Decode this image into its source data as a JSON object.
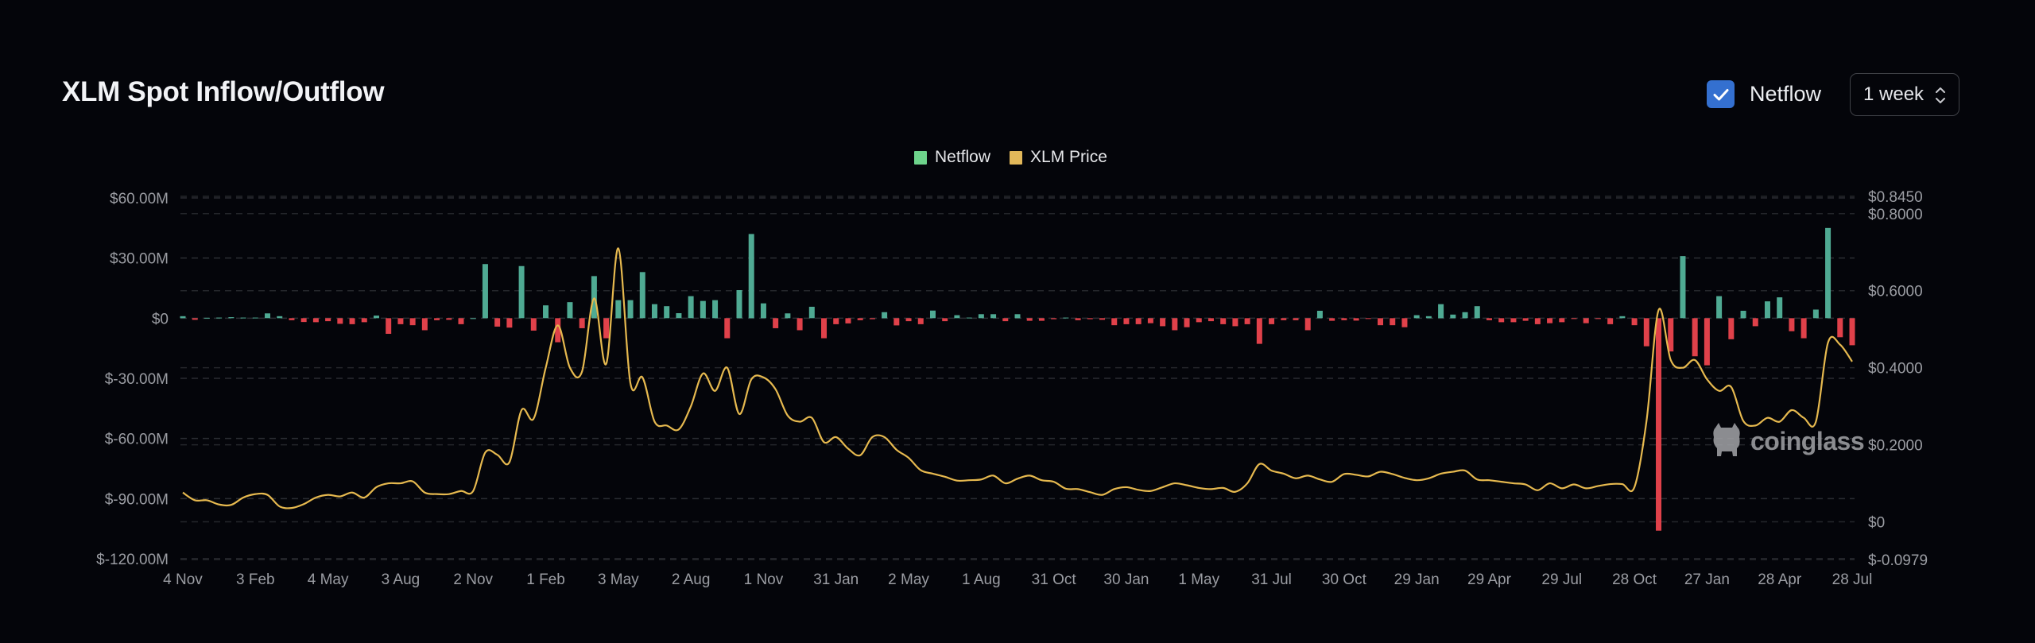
{
  "header": {
    "title": "XLM Spot Inflow/Outflow",
    "netflow_toggle": {
      "label": "Netflow",
      "checked": true,
      "icon": "checkmark-icon"
    },
    "period_select": {
      "value": "1 week",
      "icon": "chevron-up-down-icon"
    }
  },
  "watermark": {
    "text": "coinglass"
  },
  "colors": {
    "background": "#04050a",
    "inflow": "#4faa93",
    "outflow": "#e0414a",
    "price_line": "#e6b94f",
    "legend_netflow": "#6dd38b",
    "legend_price": "#e2b85a",
    "checkbox": "#3470d0"
  },
  "chart_data": {
    "type": "bar+line",
    "legend": [
      {
        "name": "Netflow",
        "color": "#6dd38b"
      },
      {
        "name": "XLM Price",
        "color": "#e2b85a"
      }
    ],
    "legend_position": "top-center",
    "grid": true,
    "x_tick_labels": [
      "4 Nov",
      "3 Feb",
      "4 May",
      "3 Aug",
      "2 Nov",
      "1 Feb",
      "3 May",
      "2 Aug",
      "1 Nov",
      "31 Jan",
      "2 May",
      "1 Aug",
      "31 Oct",
      "30 Jan",
      "1 May",
      "31 Jul",
      "30 Oct",
      "29 Jan",
      "29 Apr",
      "29 Jul",
      "28 Oct",
      "27 Jan",
      "28 Apr",
      "28 Jul"
    ],
    "left_axis": {
      "unit": "USD millions",
      "ylim": [
        -120,
        60
      ],
      "ticks": [
        60,
        30,
        0,
        -30,
        -60,
        -90,
        -120
      ],
      "tick_labels": [
        "$60.00M",
        "$30.00M",
        "$0",
        "$-30.00M",
        "$-60.00M",
        "$-90.00M",
        "$-120.00M"
      ]
    },
    "right_axis": {
      "unit": "USD",
      "ylim": [
        -0.0979,
        0.845
      ],
      "ticks": [
        0.845,
        0.8,
        0.6,
        0.4,
        0.2,
        0,
        -0.0979
      ],
      "tick_labels": [
        "$0.8450",
        "$0.8000",
        "$0.6000",
        "$0.4000",
        "$0.2000",
        "$0",
        "$-0.0979"
      ]
    },
    "series": [
      {
        "name": "Netflow",
        "type": "bar",
        "axis": "left",
        "values": [
          1,
          -0.8,
          0.2,
          0.3,
          0.5,
          0.3,
          0.3,
          2.4,
          1,
          -1,
          -1.9,
          -2,
          -1.5,
          -2.8,
          -3,
          -2,
          1.3,
          -7.8,
          -3,
          -3.5,
          -6,
          -1,
          -0.8,
          -3,
          0,
          27,
          -4.2,
          -4.7,
          26,
          -6.2,
          6.4,
          -12,
          8,
          -5,
          21,
          -10,
          9,
          9,
          23,
          7,
          6,
          2.5,
          11,
          8.6,
          9,
          -10,
          14,
          42,
          7.4,
          -5,
          2.4,
          -6,
          5.7,
          -10,
          -3,
          -2.6,
          -1,
          -0.5,
          3,
          -3.6,
          -1.5,
          -3,
          3.8,
          -1.5,
          1.5,
          0.3,
          2,
          2,
          -1.5,
          2,
          -1.3,
          -1.3,
          -0.5,
          0.3,
          -1,
          -0.5,
          -0.8,
          -3.5,
          -3,
          -3,
          -2.5,
          -4,
          -6,
          -4.5,
          -2,
          -1.5,
          -3,
          -4,
          -3,
          -12.8,
          -3,
          -1,
          -1,
          -6,
          3.7,
          -1.3,
          -1,
          -1.2,
          -0.3,
          -3.5,
          -3.5,
          -4.5,
          1.5,
          1,
          7,
          1.8,
          3,
          6,
          -1,
          -2,
          -2,
          -1.3,
          -3,
          -2.5,
          -2,
          -0.3,
          -2.5,
          -0.3,
          -3,
          1,
          -3.5,
          -14,
          -106,
          -16.6,
          31,
          -19,
          -23.5,
          11,
          -10.5,
          3.7,
          -4,
          8.4,
          10.4,
          -6.5,
          -10,
          4.3,
          45,
          -9.5,
          -13.5
        ]
      },
      {
        "name": "XLM Price",
        "type": "line",
        "axis": "right",
        "values": [
          0.076,
          0.056,
          0.056,
          0.045,
          0.044,
          0.063,
          0.072,
          0.07,
          0.04,
          0.036,
          0.046,
          0.063,
          0.07,
          0.066,
          0.076,
          0.063,
          0.09,
          0.1,
          0.1,
          0.105,
          0.076,
          0.072,
          0.072,
          0.08,
          0.08,
          0.18,
          0.174,
          0.155,
          0.29,
          0.268,
          0.4,
          0.51,
          0.4,
          0.39,
          0.58,
          0.41,
          0.71,
          0.36,
          0.375,
          0.26,
          0.25,
          0.24,
          0.3,
          0.385,
          0.34,
          0.4,
          0.28,
          0.37,
          0.375,
          0.344,
          0.276,
          0.26,
          0.27,
          0.207,
          0.22,
          0.19,
          0.173,
          0.22,
          0.22,
          0.187,
          0.166,
          0.134,
          0.125,
          0.117,
          0.107,
          0.108,
          0.11,
          0.12,
          0.1,
          0.112,
          0.12,
          0.108,
          0.104,
          0.086,
          0.085,
          0.077,
          0.07,
          0.085,
          0.09,
          0.083,
          0.08,
          0.09,
          0.1,
          0.095,
          0.088,
          0.085,
          0.088,
          0.078,
          0.1,
          0.15,
          0.133,
          0.125,
          0.113,
          0.12,
          0.11,
          0.104,
          0.124,
          0.122,
          0.118,
          0.13,
          0.124,
          0.114,
          0.108,
          0.113,
          0.125,
          0.13,
          0.133,
          0.11,
          0.108,
          0.104,
          0.1,
          0.097,
          0.082,
          0.1,
          0.087,
          0.097,
          0.087,
          0.093,
          0.098,
          0.098,
          0.09,
          0.262,
          0.55,
          0.42,
          0.4,
          0.42,
          0.37,
          0.34,
          0.35,
          0.262,
          0.25,
          0.27,
          0.26,
          0.29,
          0.27,
          0.26,
          0.465,
          0.46,
          0.416
        ]
      }
    ]
  }
}
